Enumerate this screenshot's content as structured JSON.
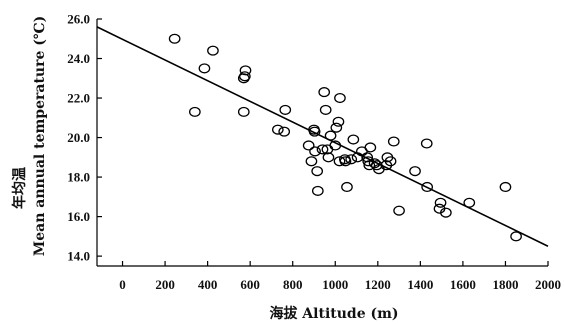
{
  "chart_data": {
    "type": "scatter",
    "title": "",
    "xlabel": "海拔 Altitude (m)",
    "ylabel_cn": "年均温",
    "ylabel_en": "Mean annual temperature (℃)",
    "xlim": [
      -120,
      2000
    ],
    "ylim": [
      13.5,
      26.0
    ],
    "x_ticks": [
      0,
      200,
      400,
      600,
      800,
      1000,
      1200,
      1400,
      1600,
      1800,
      2000
    ],
    "x_tick_labels": [
      "0",
      "200",
      "400",
      "600",
      "800",
      "1000",
      "1200",
      "1400",
      "1600",
      "1800",
      "2000"
    ],
    "y_ticks": [
      14.0,
      16.0,
      18.0,
      20.0,
      22.0,
      24.0,
      26.0
    ],
    "y_tick_labels": [
      "14.0",
      "16.0",
      "18.0",
      "20.0",
      "22.0",
      "24.0",
      "26.0"
    ],
    "grid": false,
    "trend_line": {
      "x": [
        -120,
        2000
      ],
      "y": [
        25.6,
        14.5
      ]
    },
    "points": [
      {
        "x": 245,
        "y": 25.0
      },
      {
        "x": 340,
        "y": 21.3
      },
      {
        "x": 385,
        "y": 23.5
      },
      {
        "x": 425,
        "y": 24.4
      },
      {
        "x": 570,
        "y": 23.0
      },
      {
        "x": 575,
        "y": 23.1
      },
      {
        "x": 578,
        "y": 23.4
      },
      {
        "x": 570,
        "y": 21.3
      },
      {
        "x": 730,
        "y": 20.4
      },
      {
        "x": 760,
        "y": 20.3
      },
      {
        "x": 765,
        "y": 21.4
      },
      {
        "x": 875,
        "y": 19.6
      },
      {
        "x": 888,
        "y": 18.8
      },
      {
        "x": 900,
        "y": 20.4
      },
      {
        "x": 903,
        "y": 20.3
      },
      {
        "x": 905,
        "y": 19.3
      },
      {
        "x": 915,
        "y": 18.3
      },
      {
        "x": 918,
        "y": 17.3
      },
      {
        "x": 940,
        "y": 19.4
      },
      {
        "x": 948,
        "y": 22.3
      },
      {
        "x": 955,
        "y": 21.4
      },
      {
        "x": 963,
        "y": 19.4
      },
      {
        "x": 968,
        "y": 19.0
      },
      {
        "x": 978,
        "y": 20.1
      },
      {
        "x": 1000,
        "y": 19.6
      },
      {
        "x": 1005,
        "y": 20.5
      },
      {
        "x": 1015,
        "y": 20.8
      },
      {
        "x": 1020,
        "y": 18.8
      },
      {
        "x": 1022,
        "y": 22.0
      },
      {
        "x": 1045,
        "y": 18.9
      },
      {
        "x": 1048,
        "y": 18.8
      },
      {
        "x": 1055,
        "y": 17.5
      },
      {
        "x": 1075,
        "y": 18.9
      },
      {
        "x": 1085,
        "y": 19.9
      },
      {
        "x": 1105,
        "y": 19.0
      },
      {
        "x": 1125,
        "y": 19.3
      },
      {
        "x": 1150,
        "y": 19.0
      },
      {
        "x": 1155,
        "y": 18.8
      },
      {
        "x": 1160,
        "y": 18.6
      },
      {
        "x": 1165,
        "y": 19.5
      },
      {
        "x": 1185,
        "y": 18.7
      },
      {
        "x": 1195,
        "y": 18.6
      },
      {
        "x": 1205,
        "y": 18.4
      },
      {
        "x": 1240,
        "y": 18.6
      },
      {
        "x": 1245,
        "y": 19.0
      },
      {
        "x": 1260,
        "y": 18.8
      },
      {
        "x": 1275,
        "y": 19.8
      },
      {
        "x": 1300,
        "y": 16.3
      },
      {
        "x": 1375,
        "y": 18.3
      },
      {
        "x": 1430,
        "y": 19.7
      },
      {
        "x": 1432,
        "y": 17.5
      },
      {
        "x": 1490,
        "y": 16.4
      },
      {
        "x": 1495,
        "y": 16.7
      },
      {
        "x": 1520,
        "y": 16.2
      },
      {
        "x": 1630,
        "y": 16.7
      },
      {
        "x": 1800,
        "y": 17.5
      },
      {
        "x": 1850,
        "y": 15.0
      }
    ]
  }
}
